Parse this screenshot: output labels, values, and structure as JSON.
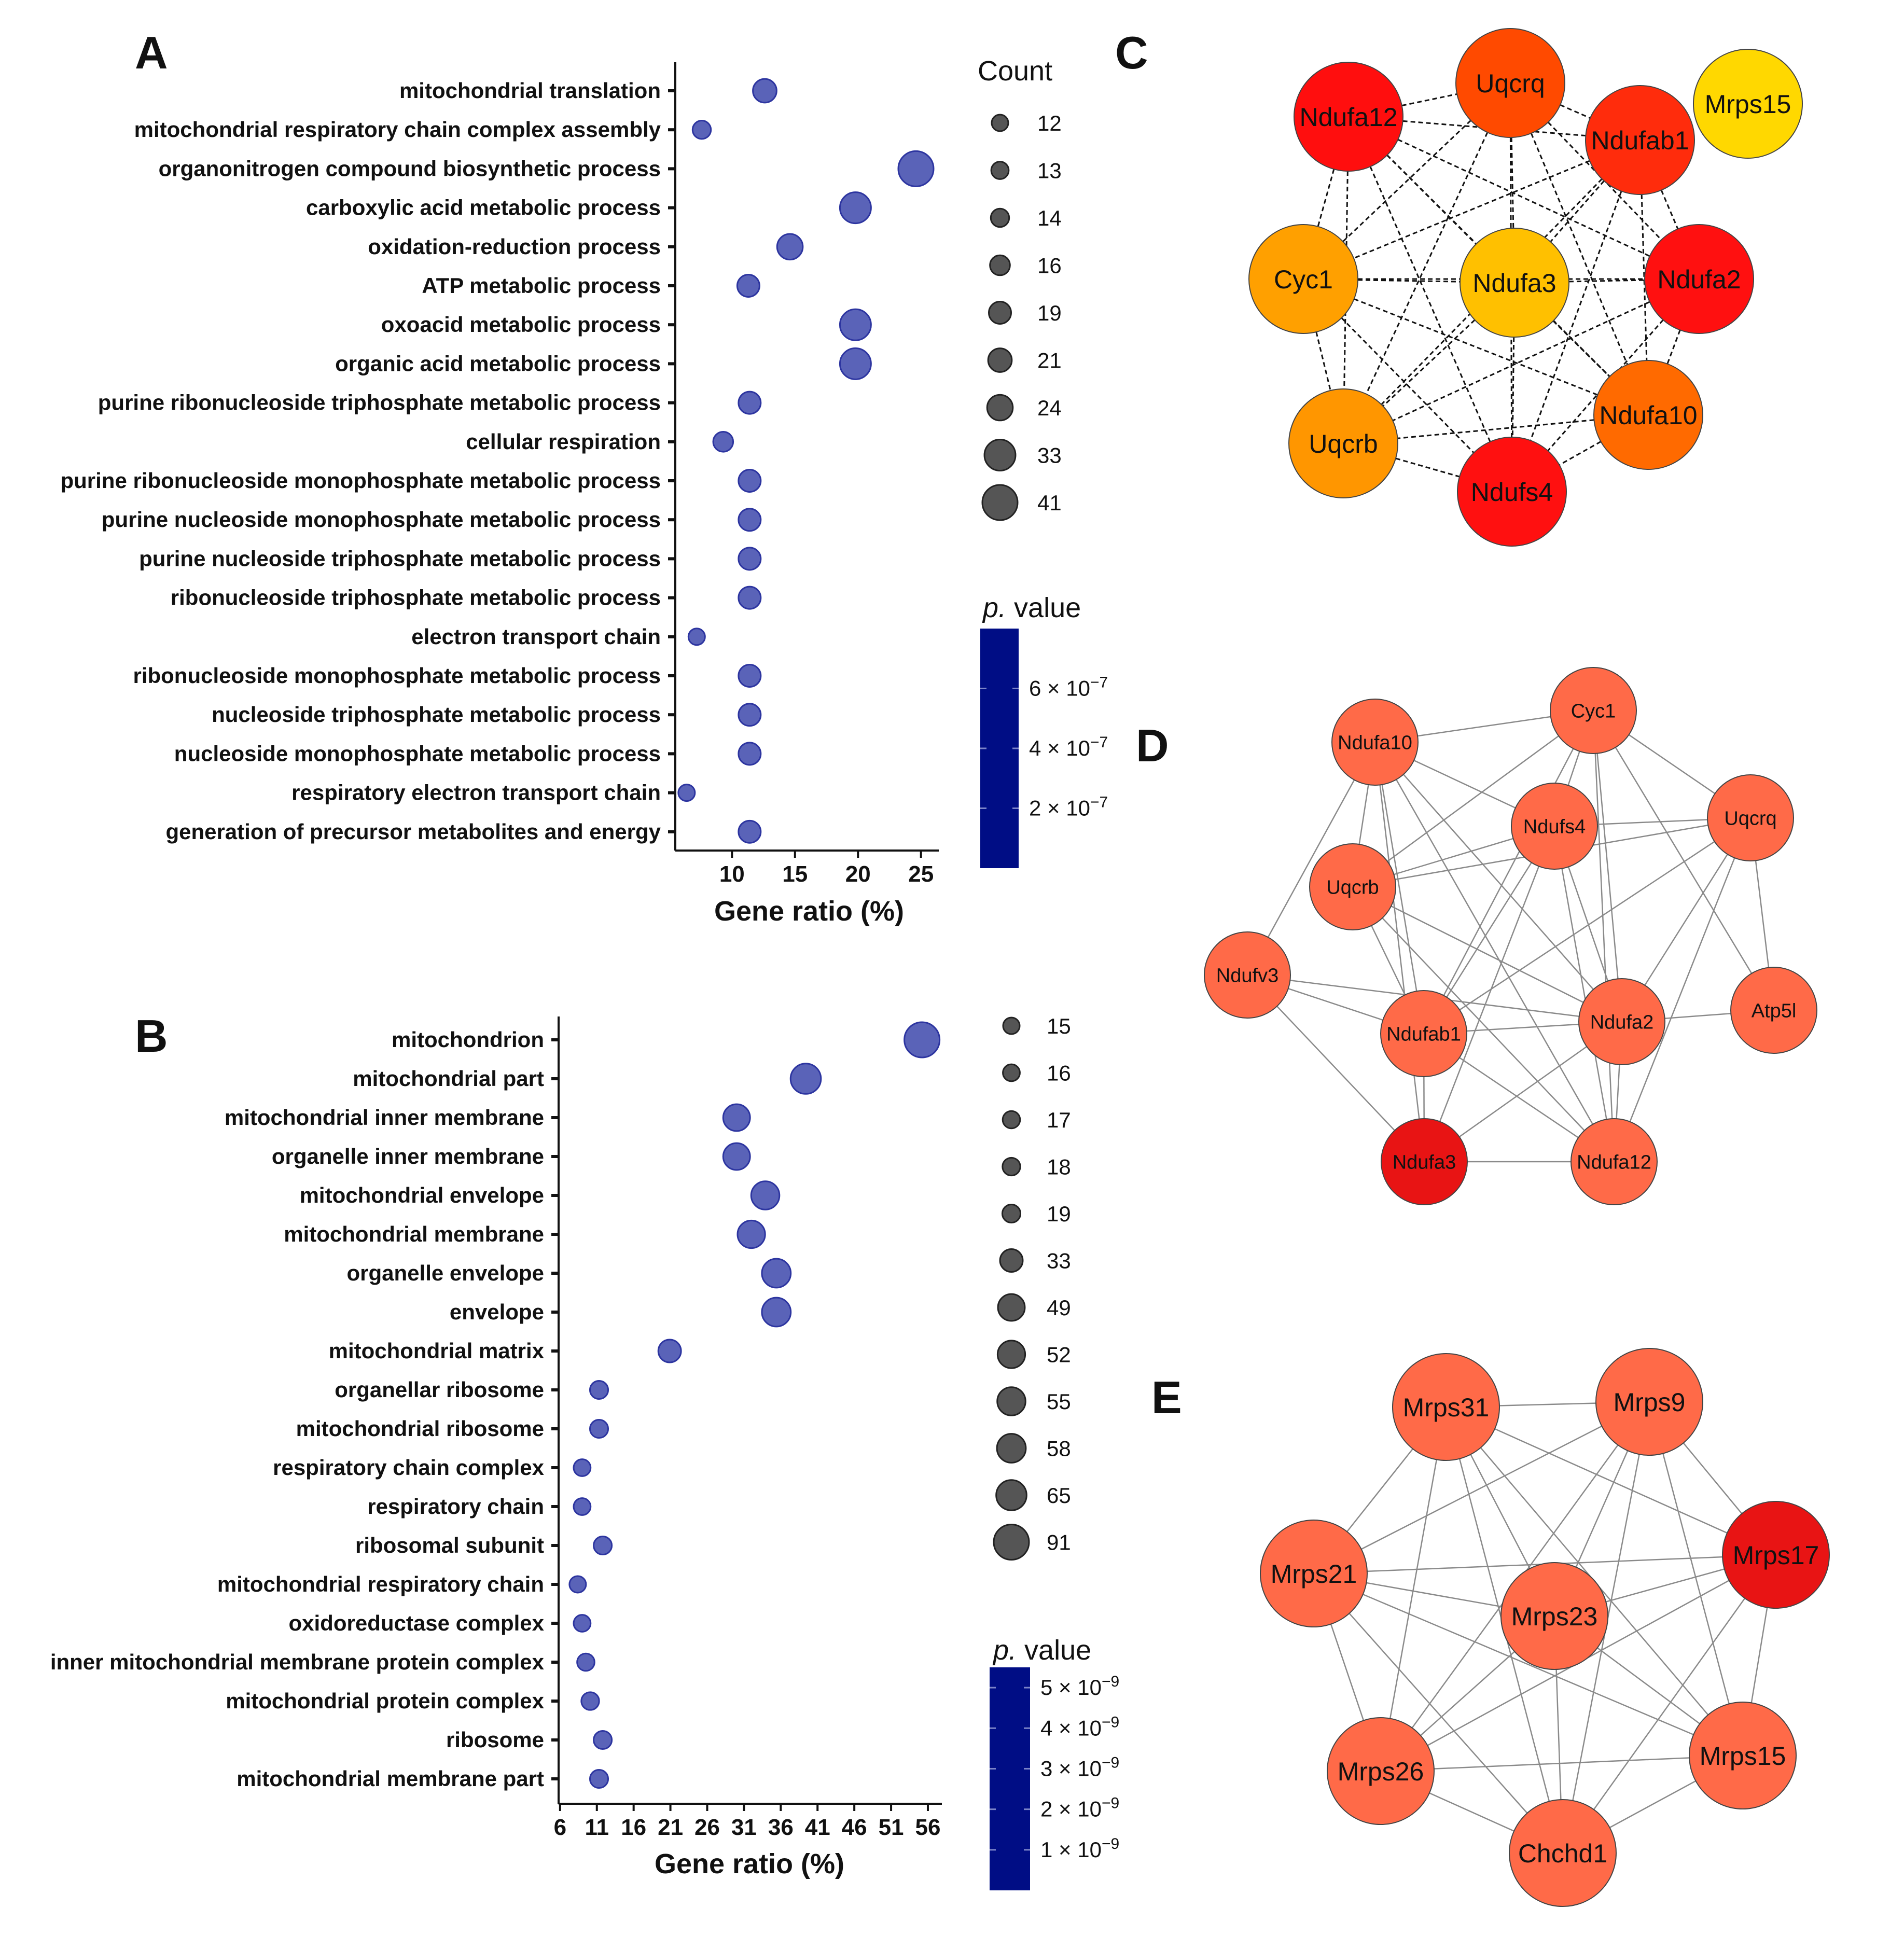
{
  "panels": {
    "a": "A",
    "b": "B",
    "c": "C",
    "d": "D",
    "e": "E"
  },
  "colors": {
    "bubble_fill": "#5a63b8",
    "bubble_stroke": "#2d35a0",
    "legend_fill": "#555555",
    "colorbar": "#000d85",
    "edge_solid": "#8a8a8a",
    "edge_dashed": "#111111"
  },
  "chart_data": [
    {
      "id": "A",
      "type": "scatter",
      "subtype": "bubble",
      "xlabel": "Gene ratio (%)",
      "xlim": [
        5.5,
        26
      ],
      "xticks": [
        10,
        15,
        20,
        25
      ],
      "terms": [
        "mitochondrial translation",
        "mitochondrial respiratory chain complex assembly",
        "organonitrogen compound biosynthetic process",
        "carboxylic acid metabolic process",
        "oxidation-reduction process",
        "ATP metabolic process",
        "oxoacid metabolic process",
        "organic acid metabolic process",
        "purine ribonucleoside triphosphate metabolic process",
        "cellular respiration",
        "purine ribonucleoside monophosphate metabolic process",
        "purine nucleoside monophosphate metabolic process",
        "purine nucleoside triphosphate metabolic process",
        "ribonucleoside triphosphate metabolic process",
        "electron transport chain",
        "ribonucleoside monophosphate metabolic process",
        "nucleoside triphosphate metabolic process",
        "nucleoside monophosphate metabolic process",
        "respiratory electron transport chain",
        "generation of precursor metabolites and energy"
      ],
      "gene_ratio": [
        12.6,
        7.6,
        24.6,
        19.8,
        14.6,
        11.3,
        19.8,
        19.8,
        11.4,
        9.3,
        11.4,
        11.4,
        11.4,
        11.4,
        7.2,
        11.4,
        11.4,
        11.4,
        6.4,
        11.4
      ],
      "count": [
        21,
        14,
        41,
        33,
        24,
        19,
        33,
        33,
        19,
        16,
        19,
        19,
        19,
        19,
        12,
        19,
        19,
        19,
        12,
        19
      ],
      "size_legend": {
        "title": "Count",
        "values": [
          12,
          13,
          14,
          16,
          19,
          21,
          24,
          33,
          41
        ]
      },
      "color_legend": {
        "title_italic": "p.",
        "title_rest": " value",
        "ticks": [
          {
            "value": 6e-07,
            "coef": "6",
            "exp": "−7"
          },
          {
            "value": 4e-07,
            "coef": "4",
            "exp": "−7"
          },
          {
            "value": 2e-07,
            "coef": "2",
            "exp": "−7"
          }
        ],
        "range": [
          0,
          8e-07
        ]
      }
    },
    {
      "id": "B",
      "type": "scatter",
      "subtype": "bubble",
      "xlabel": "Gene ratio (%)",
      "xlim": [
        5.8,
        57.2
      ],
      "xticks": [
        6,
        11,
        16,
        21,
        26,
        31,
        36,
        41,
        46,
        51,
        56
      ],
      "terms": [
        "mitochondrion",
        "mitochondrial part",
        "mitochondrial inner membrane",
        "organelle inner membrane",
        "mitochondrial envelope",
        "mitochondrial membrane",
        "organelle envelope",
        "envelope",
        "mitochondrial matrix",
        "organellar ribosome",
        "mitochondrial ribosome",
        "respiratory chain complex",
        "respiratory chain",
        "ribosomal subunit",
        "mitochondrial respiratory chain",
        "oxidoreductase complex",
        "inner mitochondrial membrane protein complex",
        "mitochondrial protein complex",
        "ribosome",
        "mitochondrial membrane part"
      ],
      "gene_ratio": [
        55.2,
        39.4,
        30.0,
        30.0,
        33.9,
        32.0,
        35.4,
        35.4,
        20.9,
        11.3,
        11.3,
        9.0,
        9.0,
        11.8,
        8.4,
        9.0,
        9.5,
        10.1,
        11.8,
        11.3
      ],
      "count": [
        91,
        65,
        49,
        49,
        55,
        52,
        58,
        58,
        33,
        19,
        19,
        16,
        16,
        19,
        15,
        16,
        17,
        18,
        19,
        19
      ],
      "size_legend": {
        "title": "",
        "values": [
          15,
          16,
          17,
          18,
          19,
          33,
          49,
          52,
          55,
          58,
          65,
          91
        ]
      },
      "color_legend": {
        "title_italic": "p.",
        "title_rest": " value",
        "ticks": [
          {
            "value": 5e-09,
            "coef": "5",
            "exp": "−9"
          },
          {
            "value": 4e-09,
            "coef": "4",
            "exp": "−9"
          },
          {
            "value": 3e-09,
            "coef": "3",
            "exp": "−9"
          },
          {
            "value": 2e-09,
            "coef": "2",
            "exp": "−9"
          },
          {
            "value": 1e-09,
            "coef": "1",
            "exp": "−9"
          }
        ],
        "range": [
          0,
          5.5e-09
        ]
      }
    }
  ],
  "networks": {
    "C": {
      "edge_style": "dashed",
      "nodes": [
        {
          "label": "Uqcrq",
          "color": "#ff4a00"
        },
        {
          "label": "Ndufa12",
          "color": "#ff0e0e"
        },
        {
          "label": "Ndufab1",
          "color": "#ff2c0c"
        },
        {
          "label": "Mrps15",
          "color": "#ffd800"
        },
        {
          "label": "Cyc1",
          "color": "#ffa000"
        },
        {
          "label": "Ndufa3",
          "color": "#ffc000"
        },
        {
          "label": "Ndufa2",
          "color": "#ff1010"
        },
        {
          "label": "Ndufa10",
          "color": "#ff6a00"
        },
        {
          "label": "Uqcrb",
          "color": "#ff9600"
        },
        {
          "label": "Ndufs4",
          "color": "#ff1010"
        }
      ],
      "edges": [
        [
          "Ndufa12",
          "Uqcrq"
        ],
        [
          "Ndufa12",
          "Ndufab1"
        ],
        [
          "Ndufa12",
          "Cyc1"
        ],
        [
          "Ndufa12",
          "Ndufa3"
        ],
        [
          "Ndufa12",
          "Ndufa2"
        ],
        [
          "Ndufa12",
          "Ndufa10"
        ],
        [
          "Ndufa12",
          "Uqcrb"
        ],
        [
          "Ndufa12",
          "Ndufs4"
        ],
        [
          "Uqcrq",
          "Ndufab1"
        ],
        [
          "Uqcrq",
          "Cyc1"
        ],
        [
          "Uqcrq",
          "Ndufa3"
        ],
        [
          "Uqcrq",
          "Ndufa2"
        ],
        [
          "Uqcrq",
          "Ndufa10"
        ],
        [
          "Uqcrq",
          "Uqcrb"
        ],
        [
          "Uqcrq",
          "Ndufs4"
        ],
        [
          "Ndufab1",
          "Cyc1"
        ],
        [
          "Ndufab1",
          "Ndufa3"
        ],
        [
          "Ndufab1",
          "Ndufa2"
        ],
        [
          "Ndufab1",
          "Ndufa10"
        ],
        [
          "Ndufab1",
          "Uqcrb"
        ],
        [
          "Ndufab1",
          "Ndufs4"
        ],
        [
          "Cyc1",
          "Ndufa3"
        ],
        [
          "Cyc1",
          "Ndufa2"
        ],
        [
          "Cyc1",
          "Ndufa10"
        ],
        [
          "Cyc1",
          "Uqcrb"
        ],
        [
          "Cyc1",
          "Ndufs4"
        ],
        [
          "Ndufa3",
          "Ndufa2"
        ],
        [
          "Ndufa3",
          "Ndufa10"
        ],
        [
          "Ndufa3",
          "Uqcrb"
        ],
        [
          "Ndufa3",
          "Ndufs4"
        ],
        [
          "Ndufa2",
          "Ndufa10"
        ],
        [
          "Ndufa2",
          "Uqcrb"
        ],
        [
          "Ndufa2",
          "Ndufs4"
        ],
        [
          "Ndufa10",
          "Uqcrb"
        ],
        [
          "Ndufa10",
          "Ndufs4"
        ],
        [
          "Uqcrb",
          "Ndufs4"
        ]
      ]
    },
    "D": {
      "edge_style": "solid",
      "nodes": [
        {
          "label": "Cyc1",
          "color": "#ff6a48"
        },
        {
          "label": "Ndufa10",
          "color": "#ff6a48"
        },
        {
          "label": "Ndufs4",
          "color": "#ff6a48"
        },
        {
          "label": "Uqcrq",
          "color": "#ff6a48"
        },
        {
          "label": "Uqcrb",
          "color": "#ff6a48"
        },
        {
          "label": "Ndufv3",
          "color": "#ff6a48"
        },
        {
          "label": "Ndufab1",
          "color": "#ff6a48"
        },
        {
          "label": "Ndufa2",
          "color": "#ff6a48"
        },
        {
          "label": "Atp5l",
          "color": "#ff6a48"
        },
        {
          "label": "Ndufa3",
          "color": "#e81414"
        },
        {
          "label": "Ndufa12",
          "color": "#ff6a48"
        }
      ],
      "edges": [
        [
          "Ndufa10",
          "Cyc1"
        ],
        [
          "Ndufa10",
          "Ndufs4"
        ],
        [
          "Ndufa10",
          "Uqcrb"
        ],
        [
          "Ndufa10",
          "Ndufv3"
        ],
        [
          "Ndufa10",
          "Ndufab1"
        ],
        [
          "Ndufa10",
          "Ndufa2"
        ],
        [
          "Ndufa10",
          "Ndufa3"
        ],
        [
          "Ndufa10",
          "Ndufa12"
        ],
        [
          "Cyc1",
          "Ndufs4"
        ],
        [
          "Cyc1",
          "Uqcrq"
        ],
        [
          "Cyc1",
          "Uqcrb"
        ],
        [
          "Cyc1",
          "Ndufab1"
        ],
        [
          "Cyc1",
          "Ndufa2"
        ],
        [
          "Cyc1",
          "Ndufa12"
        ],
        [
          "Cyc1",
          "Atp5l"
        ],
        [
          "Ndufs4",
          "Uqcrq"
        ],
        [
          "Ndufs4",
          "Uqcrb"
        ],
        [
          "Ndufs4",
          "Ndufab1"
        ],
        [
          "Ndufs4",
          "Ndufa2"
        ],
        [
          "Ndufs4",
          "Ndufa3"
        ],
        [
          "Ndufs4",
          "Ndufa12"
        ],
        [
          "Uqcrq",
          "Uqcrb"
        ],
        [
          "Uqcrq",
          "Ndufab1"
        ],
        [
          "Uqcrq",
          "Ndufa2"
        ],
        [
          "Uqcrq",
          "Atp5l"
        ],
        [
          "Uqcrq",
          "Ndufa12"
        ],
        [
          "Uqcrb",
          "Ndufab1"
        ],
        [
          "Uqcrb",
          "Ndufa2"
        ],
        [
          "Uqcrb",
          "Ndufa12"
        ],
        [
          "Ndufv3",
          "Ndufab1"
        ],
        [
          "Ndufv3",
          "Ndufa2"
        ],
        [
          "Ndufv3",
          "Ndufa3"
        ],
        [
          "Ndufab1",
          "Ndufa2"
        ],
        [
          "Ndufab1",
          "Ndufa3"
        ],
        [
          "Ndufab1",
          "Ndufa12"
        ],
        [
          "Ndufa2",
          "Atp5l"
        ],
        [
          "Ndufa2",
          "Ndufa3"
        ],
        [
          "Ndufa2",
          "Ndufa12"
        ],
        [
          "Ndufa3",
          "Ndufa12"
        ]
      ]
    },
    "E": {
      "edge_style": "solid",
      "nodes": [
        {
          "label": "Mrps31",
          "color": "#ff6a48"
        },
        {
          "label": "Mrps9",
          "color": "#ff6a48"
        },
        {
          "label": "Mrps17",
          "color": "#e81414"
        },
        {
          "label": "Mrps21",
          "color": "#ff6a48"
        },
        {
          "label": "Mrps23",
          "color": "#ff6a48"
        },
        {
          "label": "Mrps26",
          "color": "#ff6a48"
        },
        {
          "label": "Mrps15",
          "color": "#ff6a48"
        },
        {
          "label": "Chchd1",
          "color": "#ff6a48"
        }
      ],
      "edges": [
        [
          "Mrps31",
          "Mrps9"
        ],
        [
          "Mrps31",
          "Mrps17"
        ],
        [
          "Mrps31",
          "Mrps21"
        ],
        [
          "Mrps31",
          "Mrps23"
        ],
        [
          "Mrps31",
          "Mrps26"
        ],
        [
          "Mrps31",
          "Mrps15"
        ],
        [
          "Mrps31",
          "Chchd1"
        ],
        [
          "Mrps9",
          "Mrps17"
        ],
        [
          "Mrps9",
          "Mrps21"
        ],
        [
          "Mrps9",
          "Mrps23"
        ],
        [
          "Mrps9",
          "Mrps26"
        ],
        [
          "Mrps9",
          "Mrps15"
        ],
        [
          "Mrps9",
          "Chchd1"
        ],
        [
          "Mrps17",
          "Mrps21"
        ],
        [
          "Mrps17",
          "Mrps23"
        ],
        [
          "Mrps17",
          "Mrps26"
        ],
        [
          "Mrps17",
          "Mrps15"
        ],
        [
          "Mrps17",
          "Chchd1"
        ],
        [
          "Mrps21",
          "Mrps23"
        ],
        [
          "Mrps21",
          "Mrps26"
        ],
        [
          "Mrps21",
          "Mrps15"
        ],
        [
          "Mrps21",
          "Chchd1"
        ],
        [
          "Mrps23",
          "Mrps26"
        ],
        [
          "Mrps23",
          "Mrps15"
        ],
        [
          "Mrps23",
          "Chchd1"
        ],
        [
          "Mrps26",
          "Mrps15"
        ],
        [
          "Mrps26",
          "Chchd1"
        ],
        [
          "Mrps15",
          "Chchd1"
        ]
      ]
    }
  }
}
